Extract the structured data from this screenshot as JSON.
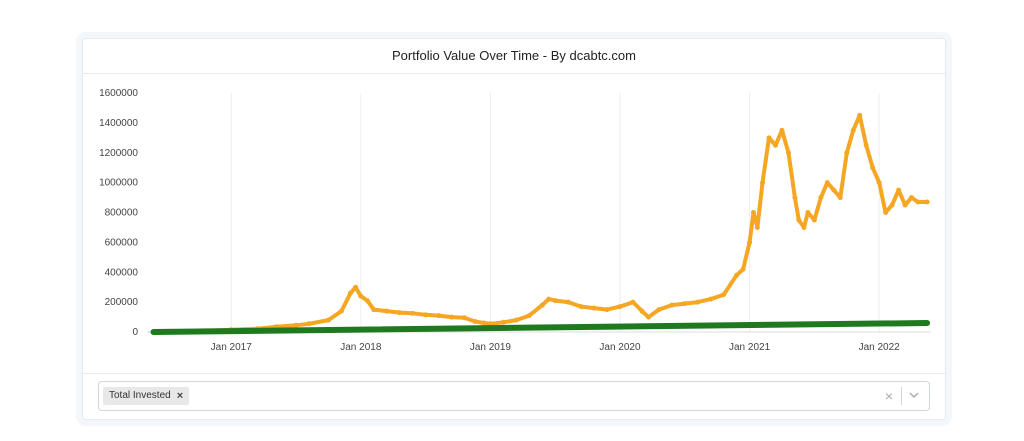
{
  "chart_data": {
    "type": "line",
    "title": "Portfolio Value Over Time - By dcabtc.com",
    "xlabel": "",
    "ylabel": "",
    "ylim": [
      0,
      1600000
    ],
    "y_ticks": [
      0,
      200000,
      400000,
      600000,
      800000,
      1000000,
      1200000,
      1400000,
      1600000
    ],
    "y_tick_labels": [
      "0",
      "200000",
      "400000",
      "600000",
      "800000",
      "1000000",
      "1200000",
      "1400000",
      "1600000"
    ],
    "x_ticks": [
      2017.0,
      2018.0,
      2019.0,
      2020.0,
      2021.0,
      2022.0
    ],
    "x_tick_labels": [
      "Jan 2017",
      "Jan 2018",
      "Jan 2019",
      "Jan 2020",
      "Jan 2021",
      "Jan 2022"
    ],
    "xlim": [
      2016.35,
      2022.4
    ],
    "grid": "vertical",
    "series": [
      {
        "name": "Portfolio Value",
        "color": "#f5a623",
        "x": [
          2016.4,
          2016.6,
          2016.8,
          2017.0,
          2017.2,
          2017.35,
          2017.5,
          2017.6,
          2017.75,
          2017.85,
          2017.92,
          2017.96,
          2018.0,
          2018.05,
          2018.1,
          2018.2,
          2018.3,
          2018.4,
          2018.5,
          2018.6,
          2018.7,
          2018.8,
          2018.88,
          2018.95,
          2019.0,
          2019.1,
          2019.2,
          2019.3,
          2019.4,
          2019.45,
          2019.5,
          2019.6,
          2019.7,
          2019.8,
          2019.9,
          2020.0,
          2020.1,
          2020.17,
          2020.22,
          2020.3,
          2020.4,
          2020.5,
          2020.6,
          2020.7,
          2020.8,
          2020.9,
          2020.95,
          2021.0,
          2021.03,
          2021.06,
          2021.1,
          2021.15,
          2021.2,
          2021.25,
          2021.3,
          2021.35,
          2021.38,
          2021.42,
          2021.45,
          2021.5,
          2021.55,
          2021.6,
          2021.65,
          2021.7,
          2021.75,
          2021.8,
          2021.85,
          2021.9,
          2021.95,
          2022.0,
          2022.05,
          2022.1,
          2022.15,
          2022.2,
          2022.25,
          2022.3,
          2022.37
        ],
        "values": [
          0,
          3000,
          8000,
          15000,
          22000,
          35000,
          45000,
          55000,
          80000,
          140000,
          260000,
          300000,
          240000,
          210000,
          150000,
          140000,
          130000,
          125000,
          115000,
          110000,
          100000,
          95000,
          70000,
          60000,
          55000,
          65000,
          80000,
          110000,
          180000,
          220000,
          210000,
          200000,
          170000,
          160000,
          150000,
          170000,
          200000,
          140000,
          100000,
          150000,
          180000,
          190000,
          200000,
          220000,
          250000,
          380000,
          420000,
          600000,
          800000,
          700000,
          1000000,
          1300000,
          1250000,
          1350000,
          1200000,
          900000,
          750000,
          700000,
          800000,
          750000,
          900000,
          1000000,
          950000,
          900000,
          1200000,
          1350000,
          1450000,
          1250000,
          1100000,
          1000000,
          800000,
          850000,
          950000,
          850000,
          900000,
          870000,
          870000
        ]
      },
      {
        "name": "Total Invested",
        "color": "#1f7a1f",
        "x": [
          2016.4,
          2022.37
        ],
        "values": [
          0,
          60000
        ]
      }
    ]
  },
  "filter": {
    "chip_label": "Total Invested",
    "chip_remove": "×",
    "clear": "×"
  }
}
